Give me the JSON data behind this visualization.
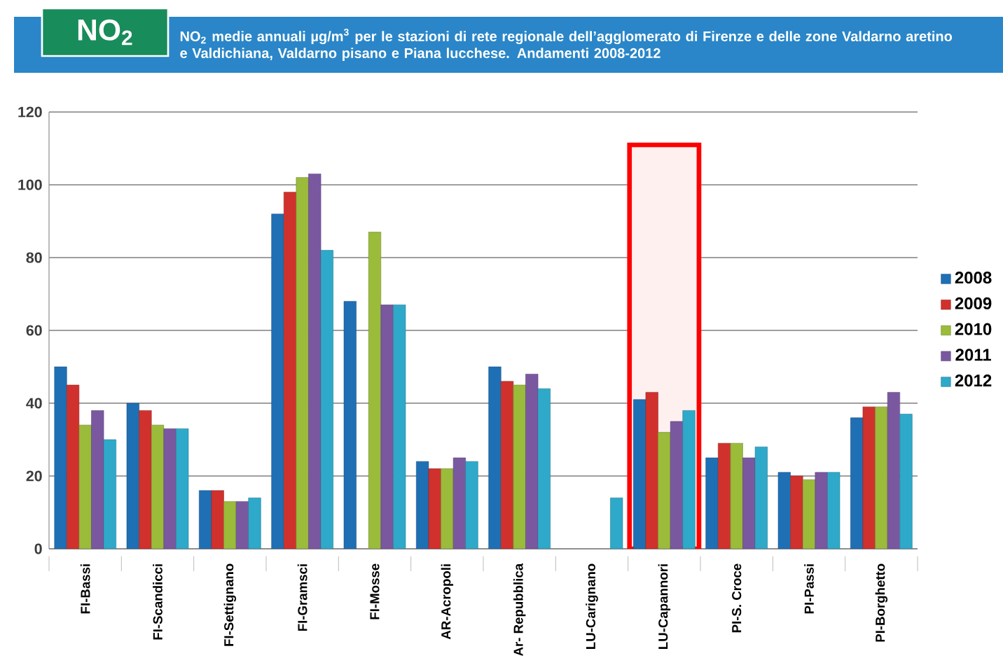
{
  "chart_data": {
    "type": "bar",
    "title": "NO$_{2}$",
    "subtitle": "NO$_{2}$ medie annuali  µg/m$^{3}$ per le stazioni di rete regionale dell’agglomerato di Firenze e delle zone Valdarno aretino e Valdichiana, Valdarno pisano e Piana lucchese. Andamenti 2008-2012",
    "categories": [
      "FI-Bassi",
      "FI-Scandicci",
      "FI-Settignano",
      "FI-Gramsci",
      "FI-Mosse",
      "AR-Acropoli",
      "Ar- Repubblica",
      "LU-Carignano",
      "LU-Capannori",
      "PI-S. Croce",
      "PI-Passi",
      "PI-Borghetto"
    ],
    "series": [
      {
        "name": "2008",
        "color": "#1f6fb5",
        "values": [
          50,
          40,
          16,
          92,
          68,
          24,
          50,
          null,
          41,
          25,
          21,
          36
        ]
      },
      {
        "name": "2009",
        "color": "#d0312d",
        "values": [
          45,
          38,
          16,
          98,
          null,
          22,
          46,
          null,
          43,
          29,
          20,
          39
        ]
      },
      {
        "name": "2010",
        "color": "#9bbb3b",
        "values": [
          34,
          34,
          13,
          102,
          87,
          22,
          45,
          null,
          32,
          29,
          19,
          39
        ]
      },
      {
        "name": "2011",
        "color": "#7a58a0",
        "values": [
          38,
          33,
          13,
          103,
          67,
          25,
          48,
          null,
          35,
          25,
          21,
          43
        ]
      },
      {
        "name": "2012",
        "color": "#2fa9c9",
        "values": [
          30,
          33,
          14,
          82,
          67,
          24,
          44,
          14,
          38,
          28,
          21,
          37
        ]
      }
    ],
    "ylim": [
      0,
      120
    ],
    "yticks": [
      0,
      20,
      40,
      60,
      80,
      100,
      120
    ],
    "grid": "y",
    "legend": "right",
    "bands": [
      {
        "axis": "x",
        "from": "LU-Capannori",
        "to": "LU-Capannori",
        "color": "#fff0f0"
      }
    ]
  }
}
